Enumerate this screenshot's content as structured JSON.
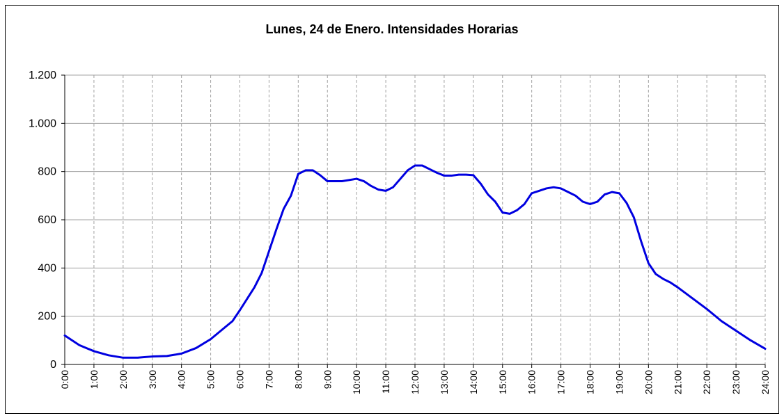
{
  "chart_data": {
    "type": "line",
    "title": "Lunes, 24 de Enero. Intensidades Horarias",
    "x": [
      0,
      0.5,
      1,
      1.5,
      2,
      2.5,
      3,
      3.5,
      4,
      4.5,
      5,
      5.5,
      5.75,
      6,
      6.5,
      6.75,
      7,
      7.25,
      7.5,
      7.75,
      8,
      8.25,
      8.5,
      8.75,
      9,
      9.5,
      10,
      10.25,
      10.5,
      10.75,
      11,
      11.25,
      11.5,
      11.75,
      12,
      12.25,
      12.5,
      12.75,
      13,
      13.25,
      13.5,
      13.75,
      14,
      14.25,
      14.5,
      14.75,
      15,
      15.25,
      15.5,
      15.75,
      16,
      16.25,
      16.5,
      16.75,
      17,
      17.25,
      17.5,
      17.75,
      18,
      18.25,
      18.5,
      18.75,
      19,
      19.25,
      19.5,
      19.75,
      20,
      20.25,
      20.5,
      20.75,
      21,
      21.5,
      22,
      22.5,
      23,
      23.5,
      24
    ],
    "series": [
      {
        "color": "#0000e0",
        "values": [
          120,
          80,
          55,
          38,
          28,
          28,
          33,
          35,
          45,
          68,
          105,
          155,
          180,
          225,
          320,
          380,
          470,
          560,
          645,
          700,
          790,
          805,
          805,
          785,
          760,
          760,
          770,
          760,
          740,
          725,
          720,
          735,
          770,
          805,
          825,
          825,
          810,
          795,
          783,
          783,
          787,
          787,
          785,
          750,
          705,
          675,
          630,
          625,
          640,
          665,
          710,
          720,
          730,
          735,
          730,
          715,
          700,
          675,
          665,
          675,
          705,
          715,
          710,
          670,
          610,
          510,
          420,
          375,
          355,
          340,
          320,
          275,
          230,
          180,
          140,
          100,
          65
        ]
      }
    ],
    "xlim": [
      0,
      24
    ],
    "xticks": [
      {
        "value": 0,
        "label": "0:00"
      },
      {
        "value": 1,
        "label": "1:00"
      },
      {
        "value": 2,
        "label": "2:00"
      },
      {
        "value": 3,
        "label": "3:00"
      },
      {
        "value": 4,
        "label": "4:00"
      },
      {
        "value": 5,
        "label": "5:00"
      },
      {
        "value": 6,
        "label": "6:00"
      },
      {
        "value": 7,
        "label": "7:00"
      },
      {
        "value": 8,
        "label": "8:00"
      },
      {
        "value": 9,
        "label": "9:00"
      },
      {
        "value": 10,
        "label": "10:00"
      },
      {
        "value": 11,
        "label": "11:00"
      },
      {
        "value": 12,
        "label": "12:00"
      },
      {
        "value": 13,
        "label": "13:00"
      },
      {
        "value": 14,
        "label": "14:00"
      },
      {
        "value": 15,
        "label": "15:00"
      },
      {
        "value": 16,
        "label": "16:00"
      },
      {
        "value": 17,
        "label": "17:00"
      },
      {
        "value": 18,
        "label": "18:00"
      },
      {
        "value": 19,
        "label": "19:00"
      },
      {
        "value": 20,
        "label": "20:00"
      },
      {
        "value": 21,
        "label": "21:00"
      },
      {
        "value": 22,
        "label": "22:00"
      },
      {
        "value": 23,
        "label": "23:00"
      },
      {
        "value": 24,
        "label": "24:00"
      }
    ],
    "ylim": [
      0,
      1200
    ],
    "yticks": [
      0,
      200,
      400,
      600,
      800,
      {
        "value": 1000,
        "label": "1.000"
      },
      {
        "value": 1200,
        "label": "1.200"
      }
    ],
    "grid": true
  }
}
